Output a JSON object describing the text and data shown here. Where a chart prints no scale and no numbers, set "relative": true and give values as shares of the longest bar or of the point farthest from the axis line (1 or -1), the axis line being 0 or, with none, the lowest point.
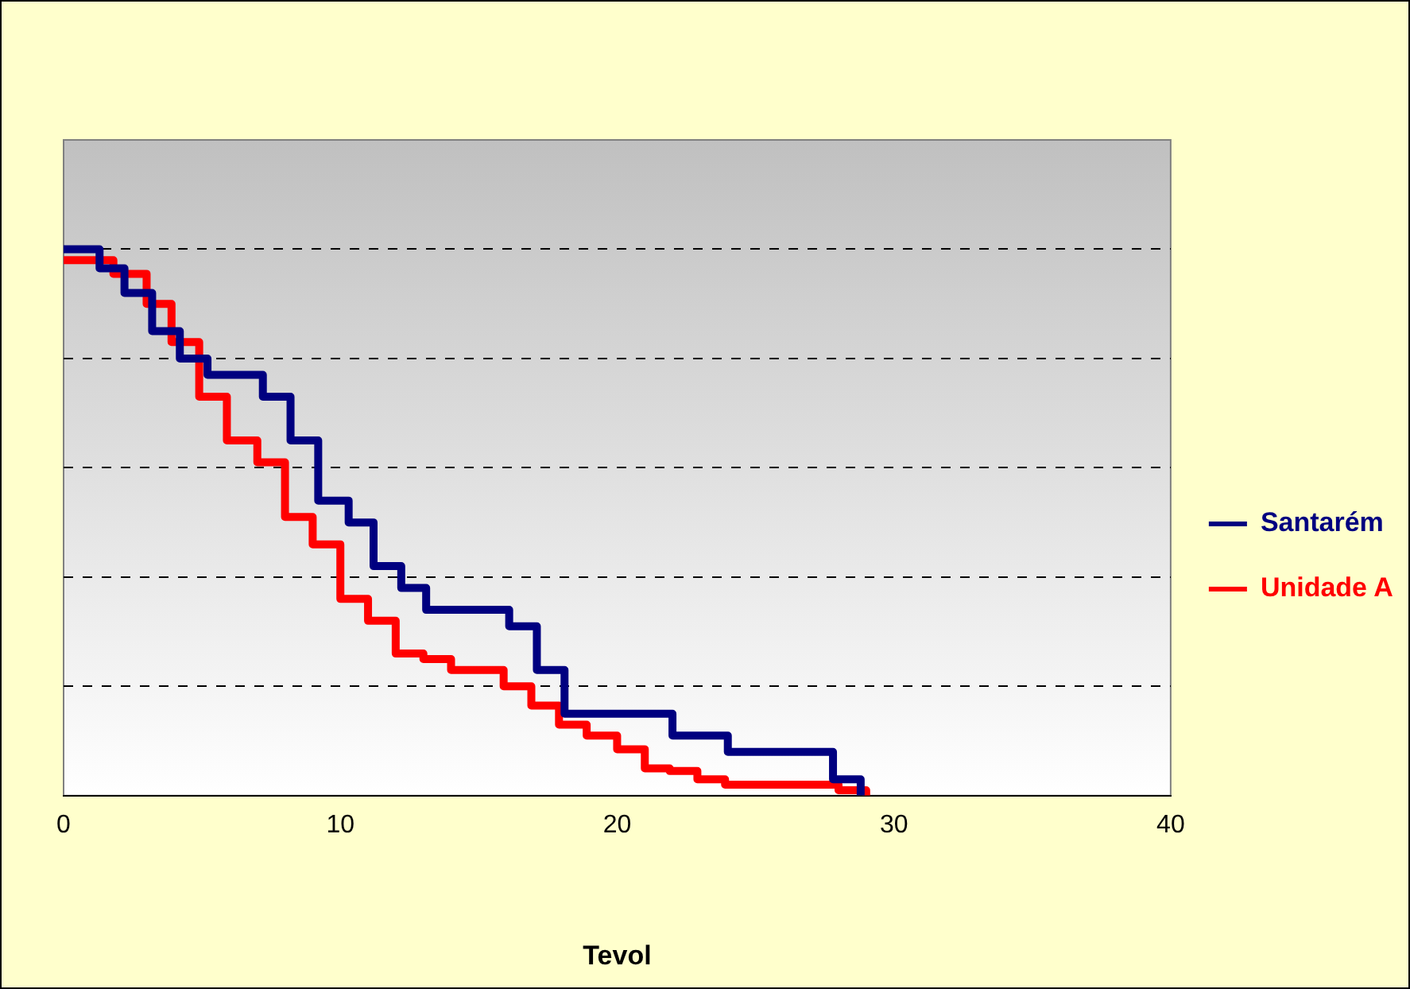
{
  "chart_data": {
    "type": "step",
    "relative": true,
    "xlabel": "Tevol",
    "xlim": [
      0,
      40
    ],
    "xticks": [
      0,
      10,
      20,
      30,
      40
    ],
    "grid": "y",
    "legend": "right",
    "line_style": "solid",
    "marker": "none",
    "series": [
      {
        "name": "Santarém",
        "color": "#000080",
        "x": [
          0,
          1.3,
          2.2,
          3.2,
          4.2,
          5.2,
          7.2,
          8.2,
          9.2,
          10.3,
          11.2,
          12.2,
          13.1,
          16.1,
          17.1,
          18.1,
          22.0,
          24.0,
          27.8,
          28.8
        ],
        "values": [
          1.0,
          0.965,
          0.92,
          0.85,
          0.8,
          0.77,
          0.73,
          0.65,
          0.54,
          0.5,
          0.42,
          0.38,
          0.34,
          0.31,
          0.23,
          0.15,
          0.11,
          0.08,
          0.03,
          0
        ]
      },
      {
        "name": "Unidade A",
        "color": "#ff0000",
        "x": [
          0,
          1.8,
          3.0,
          3.9,
          4.9,
          5.9,
          7.0,
          8.0,
          9.0,
          10.0,
          11.0,
          12.0,
          13.0,
          14.0,
          15.9,
          16.9,
          17.9,
          18.9,
          20.0,
          21.0,
          21.9,
          22.9,
          23.9,
          28.0,
          29.0
        ],
        "values": [
          0.98,
          0.955,
          0.9,
          0.83,
          0.73,
          0.65,
          0.61,
          0.51,
          0.46,
          0.36,
          0.32,
          0.26,
          0.25,
          0.23,
          0.2,
          0.165,
          0.13,
          0.11,
          0.085,
          0.05,
          0.045,
          0.03,
          0.02,
          0.01,
          0
        ]
      }
    ]
  }
}
